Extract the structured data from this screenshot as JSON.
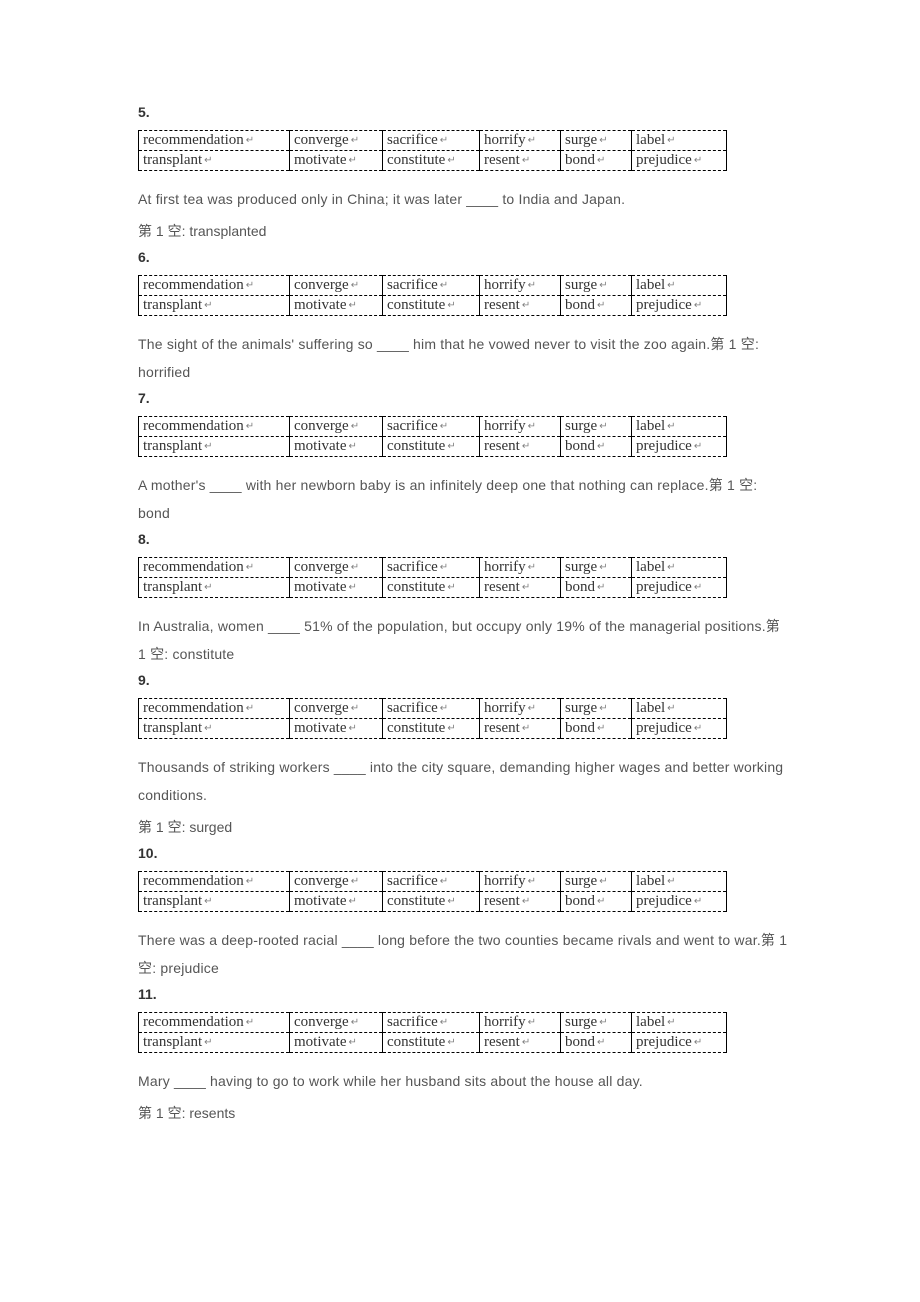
{
  "wordbank": {
    "row1": [
      "recommendation",
      "converge",
      "sacrifice",
      "horrify",
      "surge",
      "label"
    ],
    "row2": [
      "transplant",
      "motivate",
      "constitute",
      "resent",
      "bond",
      "prejudice"
    ],
    "widths": [
      140,
      82,
      86,
      70,
      60,
      84
    ]
  },
  "return_glyph": "↵",
  "answer_prefix": "第 1 空: ",
  "questions": [
    {
      "num": "5.",
      "sentence": "At first tea was produced only in China; it was later ____ to India and Japan.",
      "answer": "transplanted",
      "inline_answer": false
    },
    {
      "num": "6.",
      "sentence": "The sight of the animals' suffering so ____ him that he vowed never to visit the zoo again.",
      "answer": "horrified",
      "inline_answer": true
    },
    {
      "num": "7.",
      "sentence": "A mother's ____ with her newborn baby is an infinitely deep one that nothing can replace.",
      "answer": "bond",
      "inline_answer": true
    },
    {
      "num": "8.",
      "sentence": "In Australia, women ____ 51% of the population, but occupy only 19% of the managerial positions.",
      "answer": "constitute",
      "inline_answer": true
    },
    {
      "num": "9.",
      "sentence": "Thousands of striking workers ____ into the city square, demanding higher wages and better working conditions.",
      "answer": "surged",
      "inline_answer": false
    },
    {
      "num": "10.",
      "sentence": "There was a deep-rooted racial ____ long before the two counties became rivals and went to war.",
      "answer": "prejudice",
      "inline_answer": true
    },
    {
      "num": "11.",
      "sentence": "Mary ____ having to go to work while her husband sits about the house all day.",
      "answer": "resents",
      "inline_answer": false
    }
  ]
}
